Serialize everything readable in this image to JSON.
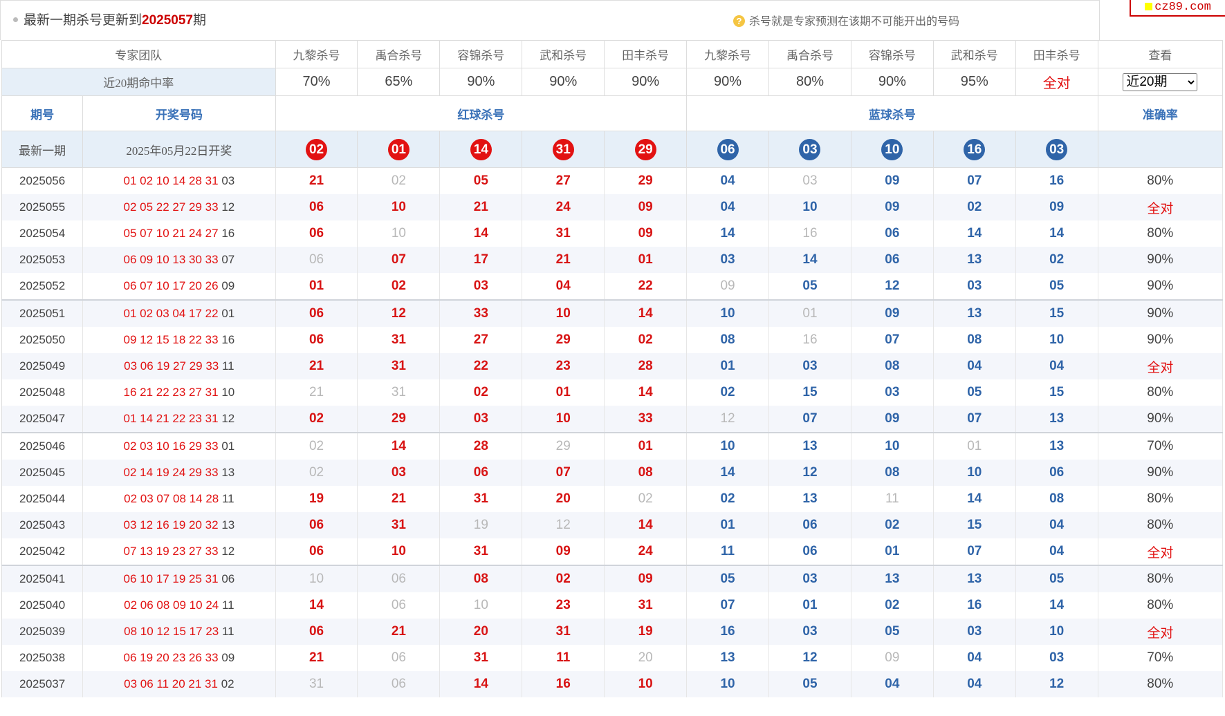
{
  "watermark": "cz89.com",
  "header": {
    "title_prefix": "最新一期杀号更新到",
    "title_issue": "2025057",
    "title_suffix": "期",
    "tip_icon": "question-icon",
    "tip_text": "杀号就是专家预测在该期不可能开出的号码"
  },
  "experts_row": {
    "team_label": "专家团队",
    "experts": [
      "九黎杀号",
      "禹合杀号",
      "容锦杀号",
      "武和杀号",
      "田丰杀号",
      "九黎杀号",
      "禹合杀号",
      "容锦杀号",
      "武和杀号",
      "田丰杀号"
    ],
    "view_label": "查看"
  },
  "rate_row": {
    "label": "近20期命中率",
    "rates": [
      "70%",
      "65%",
      "90%",
      "90%",
      "90%",
      "90%",
      "80%",
      "90%",
      "95%",
      "全对"
    ],
    "select_value": "近20期",
    "select_options": [
      "近20期"
    ]
  },
  "columns": {
    "issue": "期号",
    "draw": "开奖号码",
    "red_kill": "红球杀号",
    "blue_kill": "蓝球杀号",
    "accuracy": "准确率"
  },
  "latest": {
    "label": "最新一期",
    "date": "2025年05月22日开奖",
    "red": [
      "02",
      "01",
      "14",
      "31",
      "29"
    ],
    "blue": [
      "06",
      "03",
      "10",
      "16",
      "03"
    ]
  },
  "rows": [
    {
      "issue": "2025056",
      "red_draw": "01 02 10 14 28 31",
      "blue_draw": "03",
      "kills": [
        "21",
        "02",
        "05",
        "27",
        "29",
        "04",
        "03",
        "09",
        "07",
        "16"
      ],
      "miss": [
        1,
        6
      ],
      "acc": "80%"
    },
    {
      "issue": "2025055",
      "red_draw": "02 05 22 27 29 33",
      "blue_draw": "12",
      "kills": [
        "06",
        "10",
        "21",
        "24",
        "09",
        "04",
        "10",
        "09",
        "02",
        "09"
      ],
      "miss": [],
      "acc": "全对"
    },
    {
      "issue": "2025054",
      "red_draw": "05 07 10 21 24 27",
      "blue_draw": "16",
      "kills": [
        "06",
        "10",
        "14",
        "31",
        "09",
        "14",
        "16",
        "06",
        "14",
        "14"
      ],
      "miss": [
        1,
        6
      ],
      "acc": "80%"
    },
    {
      "issue": "2025053",
      "red_draw": "06 09 10 13 30 33",
      "blue_draw": "07",
      "kills": [
        "06",
        "07",
        "17",
        "21",
        "01",
        "03",
        "14",
        "06",
        "13",
        "02"
      ],
      "miss": [
        0
      ],
      "acc": "90%"
    },
    {
      "issue": "2025052",
      "red_draw": "06 07 10 17 20 26",
      "blue_draw": "09",
      "kills": [
        "01",
        "02",
        "03",
        "04",
        "22",
        "09",
        "05",
        "12",
        "03",
        "05"
      ],
      "miss": [
        5
      ],
      "acc": "90%"
    },
    {
      "issue": "2025051",
      "red_draw": "01 02 03 04 17 22",
      "blue_draw": "01",
      "kills": [
        "06",
        "12",
        "33",
        "10",
        "14",
        "10",
        "01",
        "09",
        "13",
        "15"
      ],
      "miss": [
        6
      ],
      "acc": "90%"
    },
    {
      "issue": "2025050",
      "red_draw": "09 12 15 18 22 33",
      "blue_draw": "16",
      "kills": [
        "06",
        "31",
        "27",
        "29",
        "02",
        "08",
        "16",
        "07",
        "08",
        "10"
      ],
      "miss": [
        6
      ],
      "acc": "90%"
    },
    {
      "issue": "2025049",
      "red_draw": "03 06 19 27 29 33",
      "blue_draw": "11",
      "kills": [
        "21",
        "31",
        "22",
        "23",
        "28",
        "01",
        "03",
        "08",
        "04",
        "04"
      ],
      "miss": [],
      "acc": "全对"
    },
    {
      "issue": "2025048",
      "red_draw": "16 21 22 23 27 31",
      "blue_draw": "10",
      "kills": [
        "21",
        "31",
        "02",
        "01",
        "14",
        "02",
        "15",
        "03",
        "05",
        "15"
      ],
      "miss": [
        0,
        1
      ],
      "acc": "80%"
    },
    {
      "issue": "2025047",
      "red_draw": "01 14 21 22 23 31",
      "blue_draw": "12",
      "kills": [
        "02",
        "29",
        "03",
        "10",
        "33",
        "12",
        "07",
        "09",
        "07",
        "13"
      ],
      "miss": [
        5
      ],
      "acc": "90%"
    },
    {
      "issue": "2025046",
      "red_draw": "02 03 10 16 29 33",
      "blue_draw": "01",
      "kills": [
        "02",
        "14",
        "28",
        "29",
        "01",
        "10",
        "13",
        "10",
        "01",
        "13"
      ],
      "miss": [
        0,
        3,
        8
      ],
      "acc": "70%"
    },
    {
      "issue": "2025045",
      "red_draw": "02 14 19 24 29 33",
      "blue_draw": "13",
      "kills": [
        "02",
        "03",
        "06",
        "07",
        "08",
        "14",
        "12",
        "08",
        "10",
        "06"
      ],
      "miss": [
        0
      ],
      "acc": "90%"
    },
    {
      "issue": "2025044",
      "red_draw": "02 03 07 08 14 28",
      "blue_draw": "11",
      "kills": [
        "19",
        "21",
        "31",
        "20",
        "02",
        "02",
        "13",
        "11",
        "14",
        "08"
      ],
      "miss": [
        4,
        7
      ],
      "acc": "80%"
    },
    {
      "issue": "2025043",
      "red_draw": "03 12 16 19 20 32",
      "blue_draw": "13",
      "kills": [
        "06",
        "31",
        "19",
        "12",
        "14",
        "01",
        "06",
        "02",
        "15",
        "04"
      ],
      "miss": [
        2,
        3
      ],
      "acc": "80%"
    },
    {
      "issue": "2025042",
      "red_draw": "07 13 19 23 27 33",
      "blue_draw": "12",
      "kills": [
        "06",
        "10",
        "31",
        "09",
        "24",
        "11",
        "06",
        "01",
        "07",
        "04"
      ],
      "miss": [],
      "acc": "全对"
    },
    {
      "issue": "2025041",
      "red_draw": "06 10 17 19 25 31",
      "blue_draw": "06",
      "kills": [
        "10",
        "06",
        "08",
        "02",
        "09",
        "05",
        "03",
        "13",
        "13",
        "05"
      ],
      "miss": [
        0,
        1
      ],
      "acc": "80%"
    },
    {
      "issue": "2025040",
      "red_draw": "02 06 08 09 10 24",
      "blue_draw": "11",
      "kills": [
        "14",
        "06",
        "10",
        "23",
        "31",
        "07",
        "01",
        "02",
        "16",
        "14"
      ],
      "miss": [
        1,
        2
      ],
      "acc": "80%"
    },
    {
      "issue": "2025039",
      "red_draw": "08 10 12 15 17 23",
      "blue_draw": "11",
      "kills": [
        "06",
        "21",
        "20",
        "31",
        "19",
        "16",
        "03",
        "05",
        "03",
        "10"
      ],
      "miss": [],
      "acc": "全对"
    },
    {
      "issue": "2025038",
      "red_draw": "06 19 20 23 26 33",
      "blue_draw": "09",
      "kills": [
        "21",
        "06",
        "31",
        "11",
        "20",
        "13",
        "12",
        "09",
        "04",
        "03"
      ],
      "miss": [
        1,
        4,
        7
      ],
      "acc": "70%"
    },
    {
      "issue": "2025037",
      "red_draw": "03 06 11 20 21 31",
      "blue_draw": "02",
      "kills": [
        "31",
        "06",
        "14",
        "16",
        "10",
        "10",
        "05",
        "04",
        "04",
        "12"
      ],
      "miss": [
        0,
        1
      ],
      "acc": "80%"
    }
  ],
  "colors": {
    "red": "#e21212",
    "blue": "#2f64a8",
    "header_blue": "#3a72b8",
    "light_bg": "#e6eff8",
    "miss_gray": "#b8b8b8"
  }
}
